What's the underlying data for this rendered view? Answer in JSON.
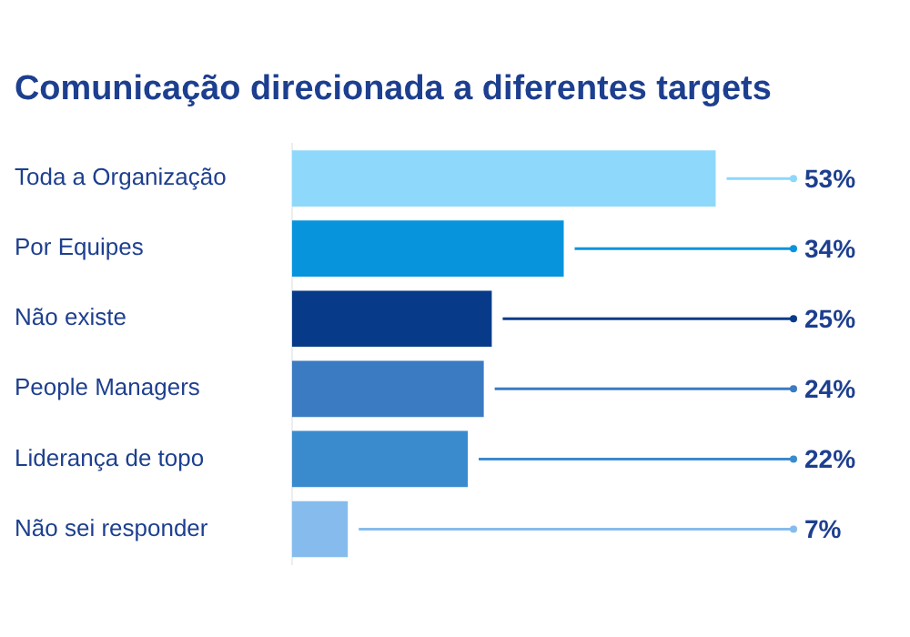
{
  "chart_data": {
    "type": "bar",
    "orientation": "horizontal",
    "title": "Comunicação direcionada a diferentes targets",
    "categories": [
      "Toda a Organização",
      "Por Equipes",
      "Não existe",
      "People Managers",
      "Liderança de topo",
      "Não sei responder"
    ],
    "values": [
      53,
      34,
      25,
      24,
      22,
      7
    ],
    "colors": [
      "#8ed8fb",
      "#0894dd",
      "#073b8a",
      "#3a7bc2",
      "#3a8bce",
      "#86bced"
    ],
    "value_labels": [
      "53%",
      "34%",
      "25%",
      "24%",
      "22%",
      "7%"
    ]
  }
}
